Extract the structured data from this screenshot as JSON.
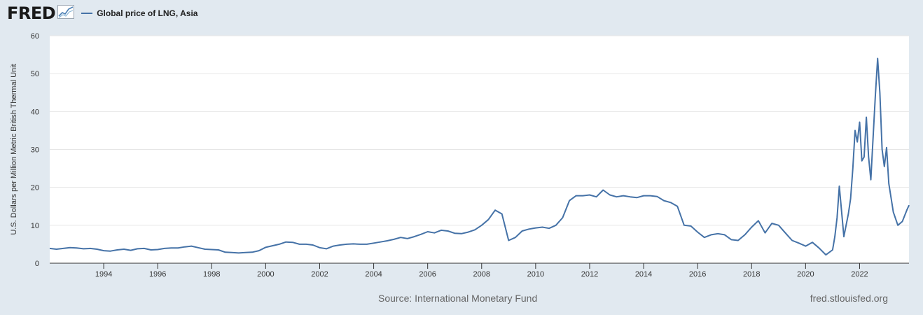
{
  "header": {
    "logo_text": "FRED",
    "logo_icon": "fred-chart-icon"
  },
  "footer": {
    "source": "Source: International Monetary Fund",
    "site": "fred.stlouisfed.org"
  },
  "colors": {
    "line": "#4572a7",
    "background": "#e1e9f0",
    "plot_bg": "#ffffff",
    "grid": "#e6e6e6"
  },
  "chart_data": {
    "type": "line",
    "title": "",
    "xlabel": "",
    "ylabel": "U.S. Dollars per Million Metric British Thermal Unit",
    "xlim": [
      1992.0,
      2023.83
    ],
    "ylim": [
      0,
      60
    ],
    "yticks": [
      0,
      10,
      20,
      30,
      40,
      50,
      60
    ],
    "xticks": [
      "1994",
      "1996",
      "1998",
      "2000",
      "2002",
      "2004",
      "2006",
      "2008",
      "2010",
      "2012",
      "2014",
      "2016",
      "2018",
      "2020",
      "2022"
    ],
    "grid": true,
    "legend": "top-left",
    "series": [
      {
        "name": "Global price of LNG, Asia",
        "x": [
          "1992-01",
          "1992-04",
          "1992-07",
          "1992-10",
          "1993-01",
          "1993-04",
          "1993-07",
          "1993-10",
          "1994-01",
          "1994-04",
          "1994-07",
          "1994-10",
          "1995-01",
          "1995-04",
          "1995-07",
          "1995-10",
          "1996-01",
          "1996-04",
          "1996-07",
          "1996-10",
          "1997-01",
          "1997-04",
          "1997-07",
          "1997-10",
          "1998-01",
          "1998-04",
          "1998-07",
          "1998-10",
          "1999-01",
          "1999-04",
          "1999-07",
          "1999-10",
          "2000-01",
          "2000-04",
          "2000-07",
          "2000-10",
          "2001-01",
          "2001-04",
          "2001-07",
          "2001-10",
          "2002-01",
          "2002-04",
          "2002-07",
          "2002-10",
          "2003-01",
          "2003-04",
          "2003-07",
          "2003-10",
          "2004-01",
          "2004-04",
          "2004-07",
          "2004-10",
          "2005-01",
          "2005-04",
          "2005-07",
          "2005-10",
          "2006-01",
          "2006-04",
          "2006-07",
          "2006-10",
          "2007-01",
          "2007-04",
          "2007-07",
          "2007-10",
          "2008-01",
          "2008-04",
          "2008-07",
          "2008-10",
          "2009-01",
          "2009-04",
          "2009-07",
          "2009-10",
          "2010-01",
          "2010-04",
          "2010-07",
          "2010-10",
          "2011-01",
          "2011-04",
          "2011-07",
          "2011-10",
          "2012-01",
          "2012-04",
          "2012-07",
          "2012-10",
          "2013-01",
          "2013-04",
          "2013-07",
          "2013-10",
          "2014-01",
          "2014-04",
          "2014-07",
          "2014-10",
          "2015-01",
          "2015-04",
          "2015-07",
          "2015-10",
          "2016-01",
          "2016-04",
          "2016-07",
          "2016-10",
          "2017-01",
          "2017-04",
          "2017-07",
          "2017-10",
          "2018-01",
          "2018-04",
          "2018-07",
          "2018-10",
          "2019-01",
          "2019-04",
          "2019-07",
          "2019-10",
          "2020-01",
          "2020-04",
          "2020-07",
          "2020-10",
          "2021-01",
          "2021-02",
          "2021-03",
          "2021-04",
          "2021-06",
          "2021-08",
          "2021-09",
          "2021-10",
          "2021-11",
          "2021-12",
          "2022-01",
          "2022-02",
          "2022-03",
          "2022-04",
          "2022-05",
          "2022-06",
          "2022-07",
          "2022-08",
          "2022-09",
          "2022-10",
          "2022-11",
          "2022-12",
          "2023-01",
          "2023-02",
          "2023-04",
          "2023-06",
          "2023-08",
          "2023-10",
          "2023-11"
        ],
        "y": [
          3.9,
          3.7,
          3.9,
          4.1,
          4.0,
          3.8,
          3.9,
          3.7,
          3.3,
          3.2,
          3.5,
          3.7,
          3.4,
          3.8,
          3.9,
          3.5,
          3.6,
          3.9,
          4.0,
          4.0,
          4.3,
          4.5,
          4.1,
          3.7,
          3.6,
          3.5,
          2.9,
          2.8,
          2.7,
          2.8,
          2.9,
          3.3,
          4.2,
          4.6,
          5.0,
          5.6,
          5.5,
          5.0,
          5.0,
          4.8,
          4.1,
          3.8,
          4.5,
          4.8,
          5.0,
          5.1,
          5.0,
          5.0,
          5.3,
          5.6,
          5.9,
          6.3,
          6.8,
          6.5,
          7.0,
          7.6,
          8.3,
          8.0,
          8.7,
          8.5,
          7.9,
          7.8,
          8.2,
          8.8,
          10.0,
          11.5,
          14.0,
          13.0,
          6.0,
          6.8,
          8.5,
          9.0,
          9.3,
          9.5,
          9.2,
          10.0,
          12.0,
          16.5,
          17.8,
          17.8,
          18.0,
          17.5,
          19.3,
          18.0,
          17.5,
          17.8,
          17.5,
          17.3,
          17.8,
          17.8,
          17.6,
          16.5,
          16.0,
          15.0,
          10.0,
          9.8,
          8.2,
          6.8,
          7.5,
          7.8,
          7.5,
          6.2,
          6.0,
          7.5,
          9.5,
          11.2,
          8.0,
          10.5,
          10.0,
          8.0,
          6.0,
          5.3,
          4.5,
          5.5,
          4.0,
          2.2,
          3.5,
          7.0,
          12.0,
          20.3,
          7.0,
          13.0,
          17.0,
          25.0,
          35.0,
          32.0,
          37.2,
          27.0,
          28.0,
          38.5,
          28.0,
          22.0,
          33.0,
          44.0,
          54.0,
          45.0,
          30.0,
          25.5,
          30.5,
          21.0,
          13.5,
          10.0,
          11.0,
          14.0,
          15.3
        ]
      }
    ]
  }
}
